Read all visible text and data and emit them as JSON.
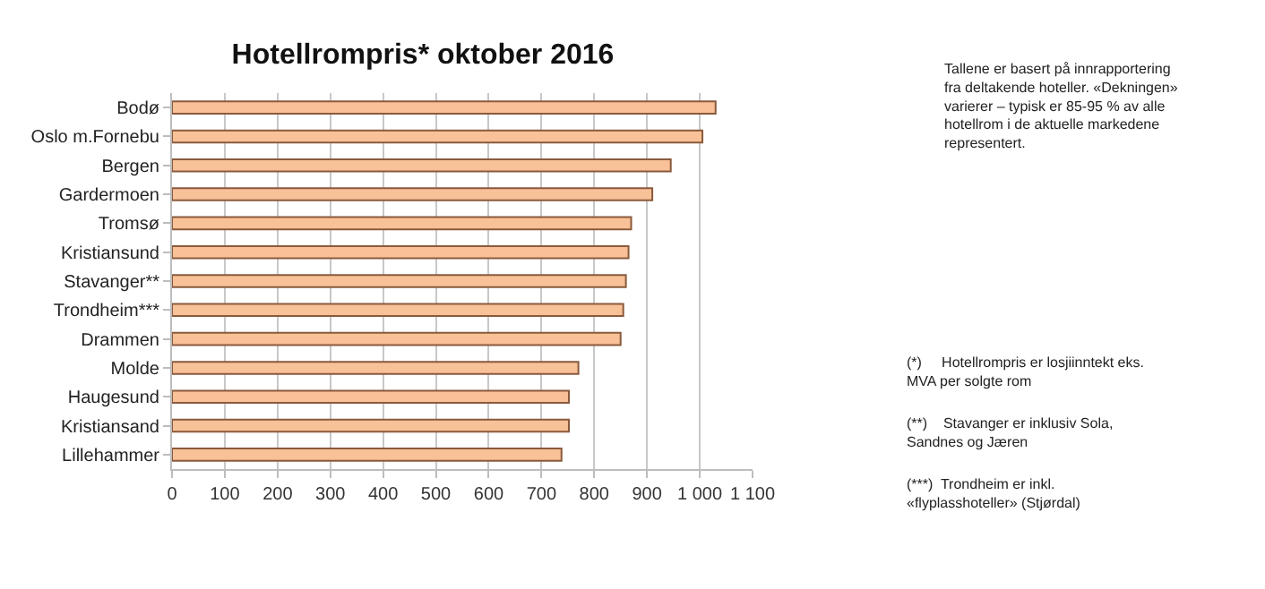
{
  "chart_data": {
    "type": "bar",
    "orientation": "horizontal",
    "title": "Hotellrompris* oktober 2016",
    "categories": [
      "Bodø",
      "Oslo m.Fornebu",
      "Bergen",
      "Gardermoen",
      "Tromsø",
      "Kristiansund",
      "Stavanger**",
      "Trondheim***",
      "Drammen",
      "Molde",
      "Haugesund",
      "Kristiansand",
      "Lillehammer"
    ],
    "values": [
      1030,
      1005,
      945,
      910,
      870,
      865,
      860,
      855,
      850,
      770,
      752,
      752,
      738
    ],
    "color": "#f8c197",
    "xlim": [
      0,
      1100
    ],
    "xticks": [
      0,
      100,
      200,
      300,
      400,
      500,
      600,
      700,
      800,
      900,
      {
        "value": 1000,
        "label": "1 000"
      },
      {
        "value": 1100,
        "label": "1 100"
      }
    ],
    "grid": "x",
    "annotations": [
      "Tallene er basert på innrapportering fra deltakende hoteller. «Dekningen» varierer – typisk er 85-95 % av alle hotellrom i de aktuelle markedene representert.",
      "(*)     Hotellrompris er losjiinntekt eks. MVA per solgte rom",
      "(**)    Stavanger er inklusiv Sola, Sandnes og Jæren",
      "(***)  Trondheim er inkl. «flyplasshoteller» (Stjørdal)"
    ]
  }
}
